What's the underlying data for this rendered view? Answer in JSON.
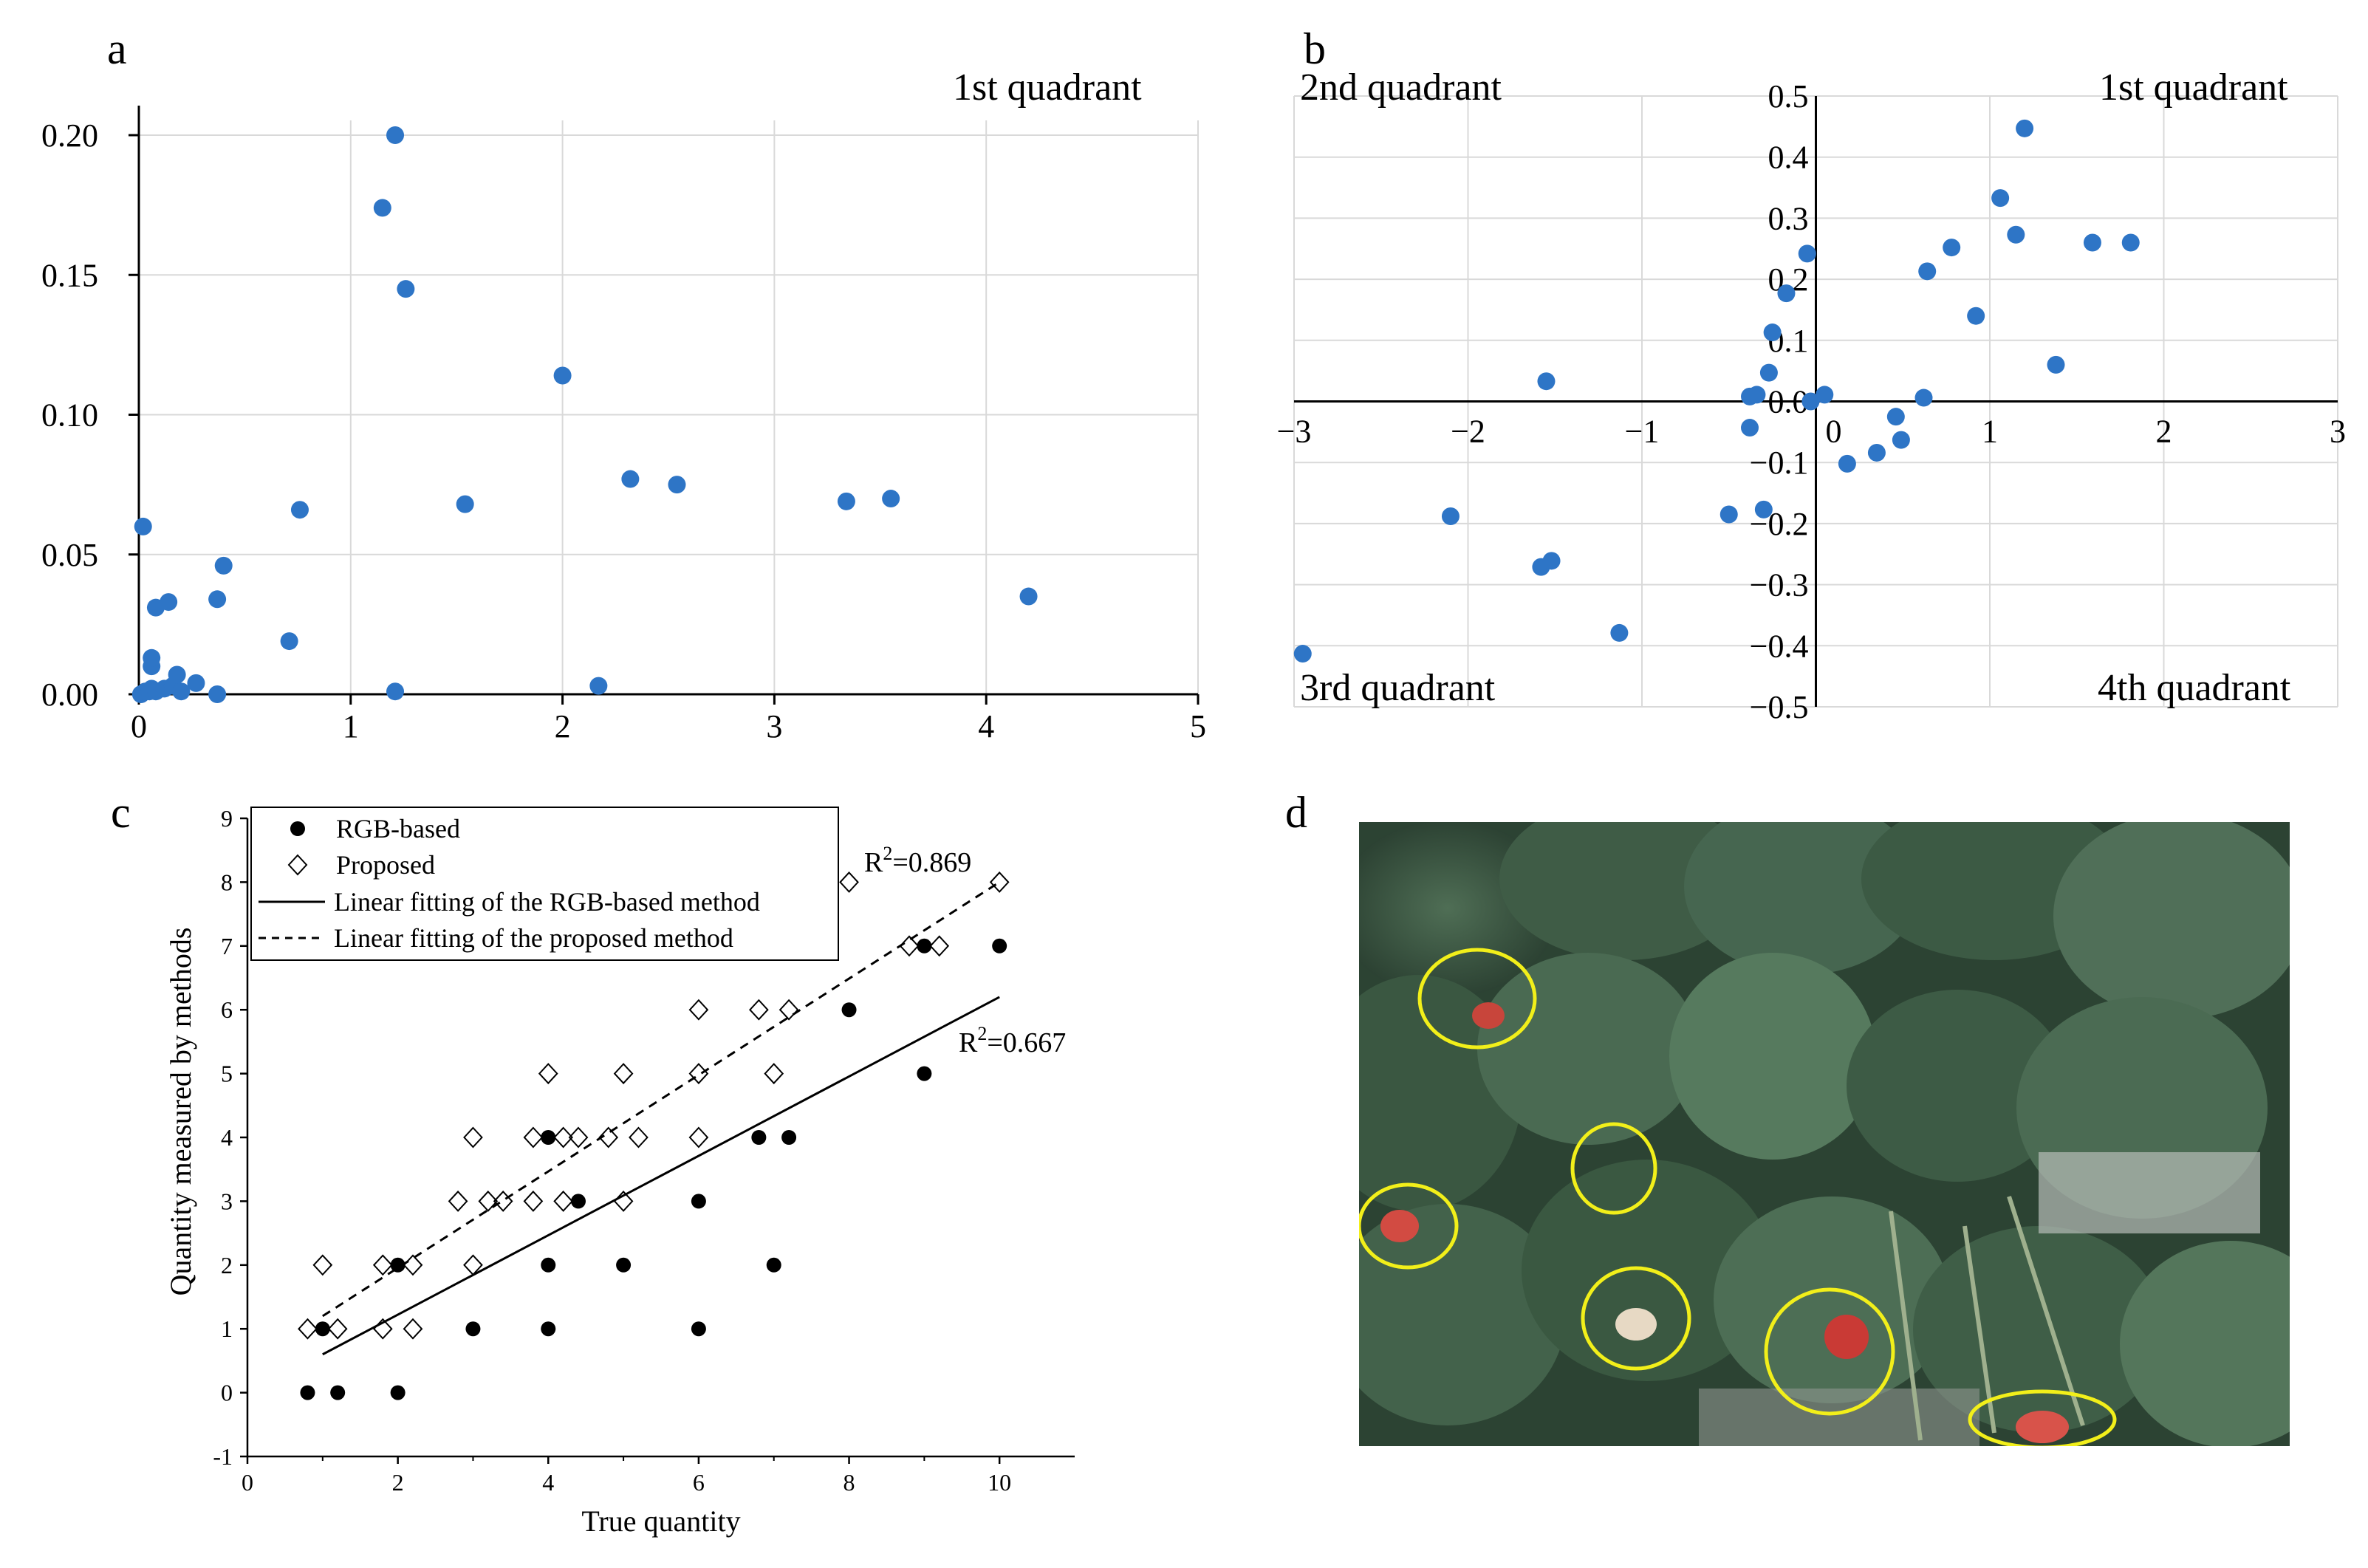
{
  "panel_labels": {
    "a": "a",
    "b": "b",
    "c": "c",
    "d": "d"
  },
  "colors": {
    "point": "#2e75c6",
    "grid": "#d9d9d9",
    "axis": "#000000",
    "highlight": "#f2ef1a"
  },
  "chart_data": [
    {
      "id": "a",
      "type": "scatter",
      "xlim": [
        0,
        5
      ],
      "ylim": [
        0,
        0.2
      ],
      "x_ticks": [
        "0",
        "1",
        "2",
        "3",
        "4",
        "5"
      ],
      "y_ticks": [
        "0.00",
        "0.05",
        "0.10",
        "0.15",
        "0.20"
      ],
      "grid": true,
      "quadrant_labels": {
        "top_right": "1st quadrant"
      },
      "points": [
        [
          0.02,
          0.06
        ],
        [
          0.01,
          0.0
        ],
        [
          0.03,
          0.001
        ],
        [
          0.05,
          0.001
        ],
        [
          0.06,
          0.002
        ],
        [
          0.06,
          0.01
        ],
        [
          0.06,
          0.013
        ],
        [
          0.08,
          0.031
        ],
        [
          0.08,
          0.001
        ],
        [
          0.12,
          0.002
        ],
        [
          0.14,
          0.033
        ],
        [
          0.16,
          0.003
        ],
        [
          0.18,
          0.007
        ],
        [
          0.2,
          0.001
        ],
        [
          0.27,
          0.004
        ],
        [
          0.37,
          0.034
        ],
        [
          0.37,
          0.0
        ],
        [
          0.4,
          0.046
        ],
        [
          0.71,
          0.019
        ],
        [
          0.76,
          0.066
        ],
        [
          1.15,
          0.174
        ],
        [
          1.21,
          0.2
        ],
        [
          1.21,
          0.001
        ],
        [
          1.26,
          0.145
        ],
        [
          1.54,
          0.068
        ],
        [
          2.0,
          0.114
        ],
        [
          2.17,
          0.003
        ],
        [
          2.32,
          0.077
        ],
        [
          2.54,
          0.075
        ],
        [
          3.34,
          0.069
        ],
        [
          3.55,
          0.07
        ],
        [
          4.2,
          0.035
        ]
      ]
    },
    {
      "id": "b",
      "type": "scatter",
      "xlim": [
        -3,
        3
      ],
      "ylim": [
        -0.5,
        0.5
      ],
      "x_ticks": [
        "−3",
        "−2",
        "−1",
        "0",
        "1",
        "2",
        "3"
      ],
      "y_ticks": [
        "0.5",
        "0.4",
        "0.3",
        "0.2",
        "0.1",
        "0.0",
        "−0.1",
        "−0.2",
        "−0.3",
        "−0.4",
        "−0.5"
      ],
      "grid": true,
      "quadrant_labels": {
        "top_left": "2nd quadrant",
        "top_right": "1st quadrant",
        "bottom_left": "3rd quadrant",
        "bottom_right": "4th quadrant"
      },
      "points": [
        [
          -2.95,
          -0.413
        ],
        [
          -2.1,
          -0.188
        ],
        [
          -1.58,
          -0.271
        ],
        [
          -1.55,
          0.033
        ],
        [
          -1.52,
          -0.261
        ],
        [
          -1.13,
          -0.379
        ],
        [
          -0.5,
          -0.185
        ],
        [
          -0.38,
          0.008
        ],
        [
          -0.38,
          -0.043
        ],
        [
          -0.34,
          0.011
        ],
        [
          -0.3,
          -0.177
        ],
        [
          -0.27,
          0.047
        ],
        [
          -0.25,
          0.113
        ],
        [
          -0.17,
          0.177
        ],
        [
          -0.05,
          0.242
        ],
        [
          -0.03,
          0.0
        ],
        [
          0.05,
          0.011
        ],
        [
          0.18,
          -0.102
        ],
        [
          0.35,
          -0.084
        ],
        [
          0.46,
          -0.025
        ],
        [
          0.49,
          -0.063
        ],
        [
          0.62,
          0.006
        ],
        [
          0.64,
          0.213
        ],
        [
          0.78,
          0.252
        ],
        [
          0.92,
          0.14
        ],
        [
          1.06,
          0.333
        ],
        [
          1.15,
          0.273
        ],
        [
          1.2,
          0.447
        ],
        [
          1.38,
          0.06
        ],
        [
          1.59,
          0.26
        ],
        [
          1.81,
          0.26
        ]
      ]
    },
    {
      "id": "c",
      "type": "scatter",
      "xlabel": "True quantity",
      "ylabel": "Quantity measured by methods",
      "xlim": [
        0,
        11
      ],
      "ylim": [
        -1,
        9
      ],
      "x_ticks": [
        "0",
        "2",
        "4",
        "6",
        "8",
        "10"
      ],
      "y_ticks": [
        "-1",
        "0",
        "1",
        "2",
        "3",
        "4",
        "5",
        "6",
        "7",
        "8",
        "9"
      ],
      "legend": {
        "rgb": "RGB-based",
        "proposed": "Proposed",
        "rgb_fit": "Linear fitting of the RGB-based method",
        "proposed_fit": "Linear fitting of the proposed method"
      },
      "annotations": {
        "r2_proposed_base": "R",
        "r2_proposed_sup": "2",
        "r2_proposed_value": "=0.869",
        "r2_rgb_base": "R",
        "r2_rgb_sup": "2",
        "r2_rgb_value": "=0.667"
      },
      "series": [
        {
          "name": "RGB-based",
          "marker": "filled-circle",
          "points": [
            [
              0.8,
              0
            ],
            [
              1.2,
              0
            ],
            [
              2,
              0
            ],
            [
              1,
              1
            ],
            [
              2,
              2
            ],
            [
              3,
              1
            ],
            [
              4,
              1
            ],
            [
              4,
              2
            ],
            [
              4,
              4
            ],
            [
              4.4,
              3
            ],
            [
              5,
              2
            ],
            [
              6,
              1
            ],
            [
              6,
              3
            ],
            [
              6.8,
              4
            ],
            [
              7,
              2
            ],
            [
              7.2,
              4
            ],
            [
              8,
              6
            ],
            [
              9,
              7
            ],
            [
              9,
              5
            ],
            [
              10,
              7
            ]
          ]
        },
        {
          "name": "Proposed",
          "marker": "open-diamond",
          "points": [
            [
              0.8,
              1
            ],
            [
              1.2,
              1
            ],
            [
              1,
              2
            ],
            [
              1.8,
              1
            ],
            [
              2.2,
              1
            ],
            [
              1.8,
              2
            ],
            [
              2.2,
              2
            ],
            [
              2.8,
              3
            ],
            [
              3.2,
              3
            ],
            [
              3.4,
              3
            ],
            [
              3,
              2
            ],
            [
              3,
              4
            ],
            [
              3.8,
              3
            ],
            [
              3.8,
              4
            ],
            [
              4,
              5
            ],
            [
              4.2,
              4
            ],
            [
              4.2,
              3
            ],
            [
              4.4,
              4
            ],
            [
              4.8,
              4
            ],
            [
              5,
              3
            ],
            [
              5,
              5
            ],
            [
              5.2,
              4
            ],
            [
              6,
              4
            ],
            [
              6,
              5
            ],
            [
              6,
              6
            ],
            [
              6.8,
              6
            ],
            [
              7,
              5
            ],
            [
              7.2,
              6
            ],
            [
              8,
              8
            ],
            [
              8.8,
              7
            ],
            [
              9.2,
              7
            ],
            [
              10,
              8
            ]
          ]
        }
      ],
      "fits": [
        {
          "name": "Linear fitting of the RGB-based method",
          "style": "solid",
          "x": [
            1,
            10
          ],
          "y": [
            0.6,
            6.2
          ]
        },
        {
          "name": "Linear fitting of the proposed method",
          "style": "dashed",
          "x": [
            1,
            10
          ],
          "y": [
            1.2,
            8.0
          ]
        }
      ]
    }
  ]
}
